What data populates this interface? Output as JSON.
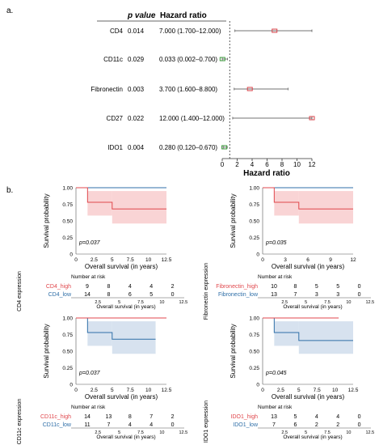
{
  "panel_a": {
    "label": "a.",
    "headers": {
      "pvalue": "p value",
      "hr": "Hazard ratio"
    },
    "xlabel": "Hazard ratio",
    "ticks": [
      0,
      2,
      4,
      6,
      8,
      10,
      12
    ],
    "rows": [
      {
        "name": "CD4",
        "p": "0.014",
        "hr_text": "7.000 (1.700–12.000)",
        "hr": 7.0,
        "lo": 1.7,
        "hi": 12.0
      },
      {
        "name": "CD11c",
        "p": "0.029",
        "hr_text": "0.033 (0.002–0.700)",
        "hr": 0.033,
        "lo": 0.002,
        "hi": 0.7
      },
      {
        "name": "Fibronectin",
        "p": "0.003",
        "hr_text": "3.700 (1.600–8.800)",
        "hr": 3.7,
        "lo": 1.6,
        "hi": 8.8
      },
      {
        "name": "CD27",
        "p": "0.022",
        "hr_text": "12.000 (1.400–12.000)",
        "hr": 12.0,
        "lo": 1.4,
        "hi": 12.0
      },
      {
        "name": "IDO1",
        "p": "0.004",
        "hr_text": "0.280 (0.120–0.670)",
        "hr": 0.28,
        "lo": 0.12,
        "hi": 0.67
      }
    ]
  },
  "panel_b": {
    "label": "b.",
    "ylabel": "Survival probability",
    "xlabel": "Overall survival (in years)",
    "risk_title": "Number at risk",
    "yticks": [
      "1.00",
      "0.75",
      "0.50",
      "0.25",
      "0"
    ],
    "colors": {
      "high": "#e0474c",
      "low": "#2f6fa8"
    },
    "plots": [
      {
        "id": "cd4",
        "pval": "p=0.037",
        "xticks": [
          "0",
          "2.5",
          "5",
          "7.5",
          "10",
          "12.5"
        ],
        "xmax": 12.5,
        "risk_axis": "CD4 expression",
        "high_label": "CD4_high",
        "low_label": "CD4_low",
        "high_risk": [
          "9",
          "8",
          "4",
          "4",
          "2"
        ],
        "low_risk": [
          "14",
          "8",
          "6",
          "5",
          "0"
        ],
        "risk_ticks": [
          "2.5",
          "5",
          "7.5",
          "10",
          "12.5"
        ],
        "drops": "high",
        "high_curve": [
          [
            0,
            1
          ],
          [
            1.6,
            1
          ],
          [
            1.6,
            0.78
          ],
          [
            5,
            0.78
          ],
          [
            5,
            0.68
          ],
          [
            12.5,
            0.68
          ]
        ],
        "low_curve": [
          [
            0,
            1
          ],
          [
            12.5,
            1
          ]
        ]
      },
      {
        "id": "fn",
        "pval": "p=0.035",
        "xticks": [
          "0",
          "3",
          "6",
          "9",
          "12"
        ],
        "xmax": 12.5,
        "risk_axis": "Fibronectin expression",
        "high_label": "Fibronectin_high",
        "low_label": "Fibronectin_low",
        "high_risk": [
          "10",
          "8",
          "5",
          "5",
          "0"
        ],
        "low_risk": [
          "13",
          "7",
          "3",
          "3",
          "0"
        ],
        "risk_ticks": [
          "2.5",
          "5",
          "7.5",
          "10",
          "12.5"
        ],
        "drops": "high",
        "high_curve": [
          [
            0,
            1
          ],
          [
            1.6,
            1
          ],
          [
            1.6,
            0.78
          ],
          [
            5,
            0.78
          ],
          [
            5,
            0.68
          ],
          [
            12.5,
            0.68
          ]
        ],
        "low_curve": [
          [
            0,
            1
          ],
          [
            12.5,
            1
          ]
        ]
      },
      {
        "id": "cd11c",
        "pval": "p=0.037",
        "xticks": [
          "0",
          "2.5",
          "5",
          "7.5",
          "10",
          "12.5"
        ],
        "xmax": 12.5,
        "risk_axis": "CD11c expression",
        "high_label": "CD11c_high",
        "low_label": "CD11c_low",
        "high_risk": [
          "14",
          "13",
          "8",
          "7",
          "2"
        ],
        "low_risk": [
          "11",
          "7",
          "4",
          "4",
          "0"
        ],
        "risk_ticks": [
          "2.5",
          "5",
          "7.5",
          "10",
          "12.5"
        ],
        "drops": "low",
        "high_curve": [
          [
            0,
            1
          ],
          [
            12.5,
            1
          ]
        ],
        "low_curve": [
          [
            0,
            1
          ],
          [
            1.6,
            1
          ],
          [
            1.6,
            0.78
          ],
          [
            5,
            0.78
          ],
          [
            5,
            0.68
          ],
          [
            11,
            0.68
          ]
        ]
      },
      {
        "id": "ido1",
        "pval": "p=0.045",
        "xticks": [
          "0",
          "2.5",
          "5",
          "7.5",
          "10",
          "12.5"
        ],
        "xmax": 12.5,
        "risk_axis": "IDO1 expression",
        "high_label": "IDO1_high",
        "low_label": "IDO1_low",
        "high_risk": [
          "13",
          "5",
          "4",
          "4",
          "0"
        ],
        "low_risk": [
          "7",
          "6",
          "2",
          "2",
          "0"
        ],
        "risk_ticks": [
          "2.5",
          "5",
          "7.5",
          "10",
          "12.5"
        ],
        "drops": "low",
        "high_curve": [
          [
            0,
            1
          ],
          [
            10.5,
            1
          ]
        ],
        "low_curve": [
          [
            0,
            1
          ],
          [
            1.6,
            1
          ],
          [
            1.6,
            0.78
          ],
          [
            5,
            0.78
          ],
          [
            5,
            0.66
          ],
          [
            12.5,
            0.66
          ]
        ]
      }
    ]
  }
}
